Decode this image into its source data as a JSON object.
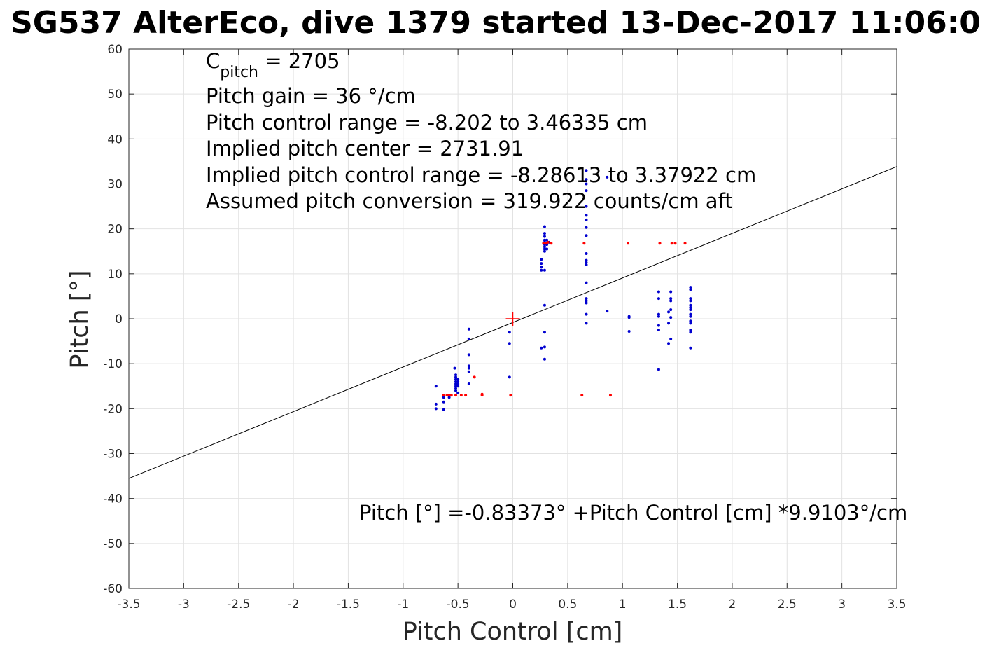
{
  "chart_data": {
    "type": "scatter",
    "title": "SG537 AlterEco, dive 1379 started 13-Dec-2017 11:06:0",
    "xlabel": "Pitch Control [cm]",
    "ylabel": "Pitch [°]",
    "xlim": [
      -3.5,
      3.5
    ],
    "ylim": [
      -60,
      60
    ],
    "xticks": [
      -3.5,
      -3,
      -2.5,
      -2,
      -1.5,
      -1,
      -0.5,
      0,
      0.5,
      1,
      1.5,
      2,
      2.5,
      3,
      3.5
    ],
    "xtick_labels": [
      "-3.5",
      "-3",
      "-2.5",
      "-2",
      "-1.5",
      "-1",
      "-0.5",
      "0",
      "0.5",
      "1",
      "1.5",
      "2",
      "2.5",
      "3",
      "3.5"
    ],
    "yticks": [
      -60,
      -50,
      -40,
      -30,
      -20,
      -10,
      0,
      10,
      20,
      30,
      40,
      50,
      60
    ],
    "ytick_labels": [
      "-60",
      "-50",
      "-40",
      "-30",
      "-20",
      "-10",
      "0",
      "10",
      "20",
      "30",
      "40",
      "50",
      "60"
    ],
    "grid": true,
    "fit_line": {
      "intercept": -0.83373,
      "slope": 9.9103,
      "color": "#000000"
    },
    "center_marker": {
      "x": 0,
      "y": 0,
      "color": "#ff0000"
    },
    "series": [
      {
        "color": "#0000d0",
        "points": [
          [
            -0.7,
            -15
          ],
          [
            -0.7,
            -19
          ],
          [
            -0.7,
            -20
          ],
          [
            -0.63,
            -17.5
          ],
          [
            -0.63,
            -18.5
          ],
          [
            -0.63,
            -20.2
          ],
          [
            -0.58,
            -17.5
          ],
          [
            -0.53,
            -11
          ],
          [
            -0.52,
            -12.5
          ],
          [
            -0.52,
            -13
          ],
          [
            -0.52,
            -13.5
          ],
          [
            -0.52,
            -14
          ],
          [
            -0.52,
            -14.5
          ],
          [
            -0.52,
            -15
          ],
          [
            -0.52,
            -15.5
          ],
          [
            -0.52,
            -16
          ],
          [
            -0.5,
            -13.5
          ],
          [
            -0.5,
            -14
          ],
          [
            -0.5,
            -14.5
          ],
          [
            -0.5,
            -15
          ],
          [
            -0.5,
            -16.5
          ],
          [
            -0.4,
            -2.3
          ],
          [
            -0.4,
            -4.5
          ],
          [
            -0.4,
            -8
          ],
          [
            -0.4,
            -10.5
          ],
          [
            -0.4,
            -11
          ],
          [
            -0.4,
            -11.8
          ],
          [
            -0.4,
            -14.5
          ],
          [
            -0.03,
            -3
          ],
          [
            -0.03,
            -5.5
          ],
          [
            -0.03,
            -13
          ],
          [
            0.26,
            13.2
          ],
          [
            0.26,
            12.3
          ],
          [
            0.26,
            11.5
          ],
          [
            0.26,
            10.8
          ],
          [
            0.26,
            -6.5
          ],
          [
            0.29,
            20.5
          ],
          [
            0.29,
            19
          ],
          [
            0.29,
            18.3
          ],
          [
            0.29,
            17.5
          ],
          [
            0.29,
            17
          ],
          [
            0.29,
            16.5
          ],
          [
            0.29,
            16
          ],
          [
            0.29,
            15.5
          ],
          [
            0.29,
            15
          ],
          [
            0.29,
            10.8
          ],
          [
            0.29,
            3
          ],
          [
            0.29,
            -3
          ],
          [
            0.29,
            -6.3
          ],
          [
            0.29,
            -9
          ],
          [
            0.31,
            17.5
          ],
          [
            0.31,
            16.5
          ],
          [
            0.31,
            15.5
          ],
          [
            0.33,
            17
          ],
          [
            0.67,
            33
          ],
          [
            0.67,
            31
          ],
          [
            0.67,
            30
          ],
          [
            0.67,
            28.5
          ],
          [
            0.67,
            25
          ],
          [
            0.67,
            23
          ],
          [
            0.67,
            22
          ],
          [
            0.67,
            20.3
          ],
          [
            0.67,
            18.5
          ],
          [
            0.67,
            14.5
          ],
          [
            0.67,
            13
          ],
          [
            0.67,
            12.5
          ],
          [
            0.67,
            12
          ],
          [
            0.67,
            8
          ],
          [
            0.67,
            4.5
          ],
          [
            0.67,
            4
          ],
          [
            0.67,
            3.5
          ],
          [
            0.67,
            1
          ],
          [
            0.67,
            -1
          ],
          [
            0.86,
            31.5
          ],
          [
            0.86,
            1.7
          ],
          [
            1.06,
            0.5
          ],
          [
            1.06,
            0.3
          ],
          [
            1.06,
            -2.8
          ],
          [
            1.33,
            6
          ],
          [
            1.33,
            4.5
          ],
          [
            1.33,
            1
          ],
          [
            1.33,
            0.5
          ],
          [
            1.33,
            -1.5
          ],
          [
            1.33,
            -2.5
          ],
          [
            1.33,
            -11.3
          ],
          [
            1.42,
            1.5
          ],
          [
            1.42,
            -1
          ],
          [
            1.42,
            -5.5
          ],
          [
            1.44,
            6
          ],
          [
            1.44,
            4.5
          ],
          [
            1.44,
            4
          ],
          [
            1.44,
            2
          ],
          [
            1.44,
            0.3
          ],
          [
            1.44,
            -4.5
          ],
          [
            1.62,
            7
          ],
          [
            1.62,
            6.5
          ],
          [
            1.62,
            4.5
          ],
          [
            1.62,
            4
          ],
          [
            1.62,
            3
          ],
          [
            1.62,
            2.5
          ],
          [
            1.62,
            2
          ],
          [
            1.62,
            1
          ],
          [
            1.62,
            0.5
          ],
          [
            1.62,
            -0.5
          ],
          [
            1.62,
            -1
          ],
          [
            1.62,
            -2.5
          ],
          [
            1.62,
            -3
          ],
          [
            1.62,
            -6.5
          ]
        ]
      },
      {
        "color": "#ff0000",
        "points": [
          [
            -0.63,
            -17
          ],
          [
            -0.6,
            -17
          ],
          [
            -0.58,
            -17
          ],
          [
            -0.56,
            -17
          ],
          [
            -0.52,
            -17
          ],
          [
            -0.47,
            -17
          ],
          [
            -0.43,
            -17
          ],
          [
            -0.35,
            -13
          ],
          [
            -0.28,
            -16.8
          ],
          [
            -0.28,
            -17
          ],
          [
            -0.02,
            -17
          ],
          [
            0.28,
            16.8
          ],
          [
            0.3,
            16.8
          ],
          [
            0.32,
            17
          ],
          [
            0.35,
            16.8
          ],
          [
            0.63,
            -17
          ],
          [
            0.65,
            16.8
          ],
          [
            0.89,
            -17
          ],
          [
            1.05,
            16.8
          ],
          [
            1.34,
            16.8
          ],
          [
            1.45,
            16.8
          ],
          [
            1.48,
            16.8
          ],
          [
            1.57,
            16.8
          ]
        ]
      }
    ],
    "annotations": {
      "c_pitch_label": "C",
      "c_pitch_sub": "pitch",
      "c_pitch_value": " = 2705",
      "lines": [
        "Pitch gain = 36 °/cm",
        "Pitch control range = -8.202 to 3.46335 cm",
        "Implied pitch center = 2731.91",
        "Implied pitch control range = -8.28613 to 3.37922 cm",
        "Assumed pitch conversion = 319.922 counts/cm aft"
      ],
      "fit_text": "Pitch [°] =-0.83373° +Pitch Control [cm] *9.9103°/cm"
    }
  }
}
